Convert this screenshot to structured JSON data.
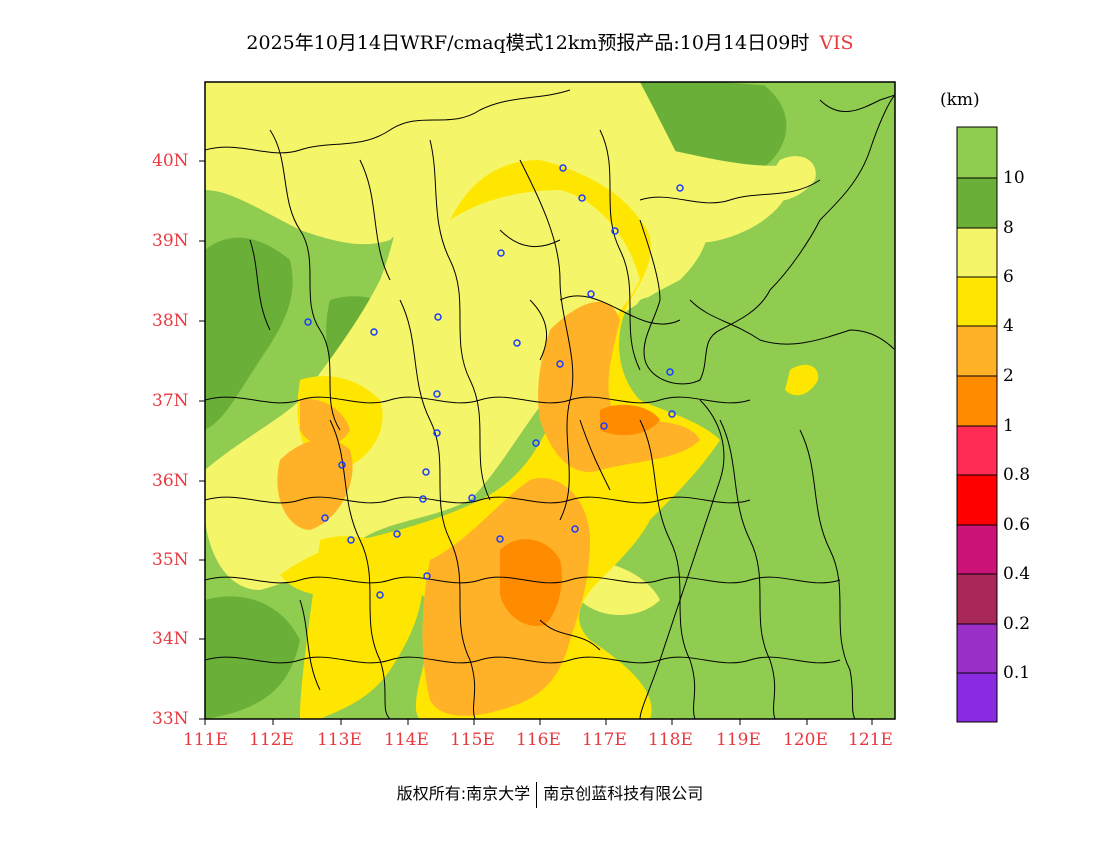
{
  "title": {
    "text": "2025年10月14日WRF/cmaq模式12km预报产品:10月14日09时",
    "variable": "VIS"
  },
  "colorbar": {
    "unit": "(km)",
    "labels": [
      "10",
      "8",
      "6",
      "4",
      "2",
      "1",
      "0.8",
      "0.6",
      "0.4",
      "0.2",
      "0.1"
    ],
    "colors": [
      "#90cc50",
      "#6ab038",
      "#f5f56a",
      "#ffe600",
      "#ffb228",
      "#ff8c00",
      "#ff2d55",
      "#ff0000",
      "#cc1478",
      "#a8285a",
      "#9b30c8",
      "#8a2be2"
    ]
  },
  "axes": {
    "lat_labels": [
      "40N",
      "39N",
      "38N",
      "37N",
      "36N",
      "35N",
      "34N",
      "33N"
    ],
    "lon_labels": [
      "111E",
      "112E",
      "113E",
      "114E",
      "115E",
      "116E",
      "117E",
      "118E",
      "119E",
      "120E",
      "121E"
    ],
    "tick_color": "#e8393f"
  },
  "footer": {
    "copyright": "版权所有:南京大学",
    "company": "南京创蓝科技有限公司"
  }
}
